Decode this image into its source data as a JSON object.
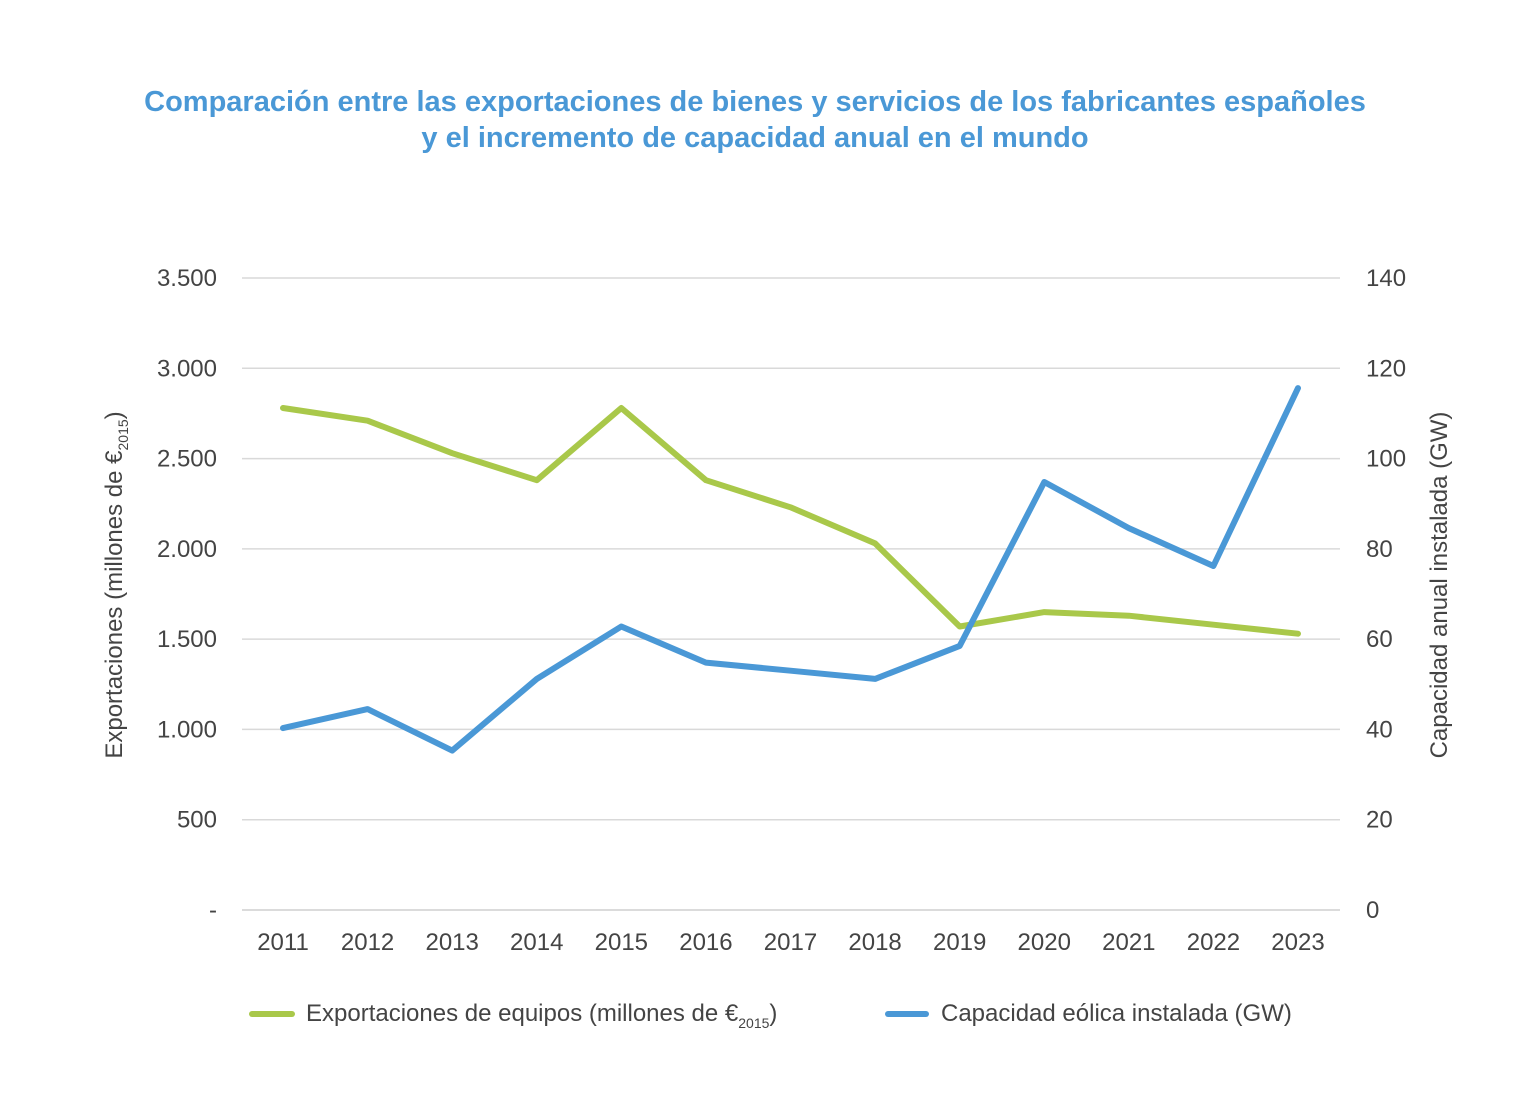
{
  "chart_data": {
    "type": "line",
    "title_line1": "Comparación entre las exportaciones de bienes y servicios de los fabricantes españoles",
    "title_line2": "y el incremento de capacidad anual en el mundo",
    "x": [
      "2011",
      "2012",
      "2013",
      "2014",
      "2015",
      "2016",
      "2017",
      "2018",
      "2019",
      "2020",
      "2021",
      "2022",
      "2023"
    ],
    "ylabel_left": {
      "main": "Exportaciones (millones de €",
      "sub": "2015",
      "tail": ")"
    },
    "ylabel_right": "Capacidad  anual instalada (GW)",
    "ylim_left": [
      0,
      3500
    ],
    "ylim_right": [
      0,
      140
    ],
    "left_ticks": [
      {
        "value": 0,
        "label": "-"
      },
      {
        "value": 500,
        "label": "500"
      },
      {
        "value": 1000,
        "label": "1.000"
      },
      {
        "value": 1500,
        "label": "1.500"
      },
      {
        "value": 2000,
        "label": "2.000"
      },
      {
        "value": 2500,
        "label": "2.500"
      },
      {
        "value": 3000,
        "label": "3.000"
      },
      {
        "value": 3500,
        "label": "3.500"
      }
    ],
    "right_ticks": [
      {
        "value": 0,
        "label": "0"
      },
      {
        "value": 20,
        "label": "20"
      },
      {
        "value": 40,
        "label": "40"
      },
      {
        "value": 60,
        "label": "60"
      },
      {
        "value": 80,
        "label": "80"
      },
      {
        "value": 100,
        "label": "100"
      },
      {
        "value": 120,
        "label": "120"
      },
      {
        "value": 140,
        "label": "140"
      }
    ],
    "grid": true,
    "legend_position": "bottom",
    "series": [
      {
        "name": "Exportaciones de equipos (millones de €",
        "name_sub": "2015",
        "name_tail": ")",
        "axis": "left",
        "color": "#a9c84a",
        "values": [
          2780,
          2710,
          2530,
          2380,
          2780,
          2380,
          2230,
          2030,
          1570,
          1650,
          1630,
          1580,
          1530
        ]
      },
      {
        "name": "Capacidad eólica instalada (GW)",
        "axis": "right",
        "color": "#4a98d6",
        "values": [
          40.3,
          44.5,
          35.3,
          51.2,
          62.8,
          54.8,
          53.0,
          51.2,
          58.5,
          94.8,
          84.6,
          76.2,
          115.6
        ]
      }
    ]
  }
}
